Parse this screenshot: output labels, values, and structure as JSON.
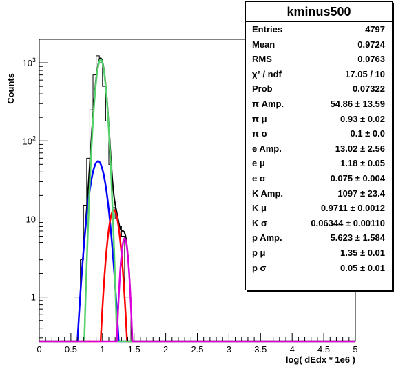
{
  "chart_data": {
    "type": "line",
    "title": "kminus500",
    "xlabel": "log( dEdx * 1e6 )",
    "ylabel": "Counts",
    "xlim": [
      0,
      5
    ],
    "ylim": [
      0.27,
      2000
    ],
    "yscale": "log",
    "x_ticks": [
      "0",
      "0.5",
      "1",
      "1.5",
      "2",
      "2.5",
      "3",
      "3.5",
      "4",
      "4.5",
      "5"
    ],
    "y_ticks": [
      {
        "value": 1,
        "label": "1"
      },
      {
        "value": 10,
        "label": "10"
      },
      {
        "value": 100,
        "base": "10",
        "exp": "2"
      },
      {
        "value": 1000,
        "base": "10",
        "exp": "3"
      }
    ],
    "histogram": {
      "bin_edges": [
        0.55,
        0.6,
        0.65,
        0.7,
        0.75,
        0.8,
        0.85,
        0.9,
        0.95,
        1.0,
        1.05,
        1.1,
        1.15,
        1.2,
        1.25,
        1.3,
        1.35,
        1.4,
        1.45
      ],
      "counts": [
        1,
        1,
        3,
        15,
        60,
        250,
        700,
        1230,
        1000,
        500,
        180,
        50,
        14,
        10,
        8,
        6,
        1,
        1
      ]
    },
    "fits": [
      {
        "label": "pi",
        "color": "#0000ff",
        "amp": 54.86,
        "mu": 0.93,
        "sigma": 0.1
      },
      {
        "label": "e",
        "color": "#ff0000",
        "amp": 13.02,
        "mu": 1.18,
        "sigma": 0.075
      },
      {
        "label": "K",
        "color": "#55d26b",
        "amp": 1097,
        "mu": 0.9711,
        "sigma": 0.06344
      },
      {
        "label": "p",
        "color": "#dd00dd",
        "amp": 5.623,
        "mu": 1.35,
        "sigma": 0.05
      }
    ],
    "stats": {
      "title": "kminus500",
      "rows": [
        {
          "name": "Entries",
          "value": "4797"
        },
        {
          "name": "Mean",
          "value": "0.9724"
        },
        {
          "name": "RMS",
          "value": "0.0763"
        },
        {
          "name": "χ² / ndf",
          "value": "17.05 / 10"
        },
        {
          "name": "Prob",
          "value": "0.07322"
        },
        {
          "name": "π Amp.",
          "value": "54.86 ± 13.59"
        },
        {
          "name": "π μ",
          "value": "0.93 ± 0.02"
        },
        {
          "name": "π σ",
          "value": "0.1 ± 0.0"
        },
        {
          "name": "e Amp.",
          "value": "13.02 ± 2.56"
        },
        {
          "name": "e μ",
          "value": "1.18 ± 0.05"
        },
        {
          "name": "e σ",
          "value": "0.075 ± 0.004"
        },
        {
          "name": "K Amp.",
          "value": "1097 ± 23.4"
        },
        {
          "name": "K μ",
          "value": "0.9711 ± 0.0012"
        },
        {
          "name": "K σ",
          "value": "0.06344 ± 0.00110"
        },
        {
          "name": "p Amp.",
          "value": "5.623 ± 1.584"
        },
        {
          "name": "p μ",
          "value": "1.35 ± 0.01"
        },
        {
          "name": "p σ",
          "value": "0.05 ± 0.01"
        }
      ]
    }
  }
}
